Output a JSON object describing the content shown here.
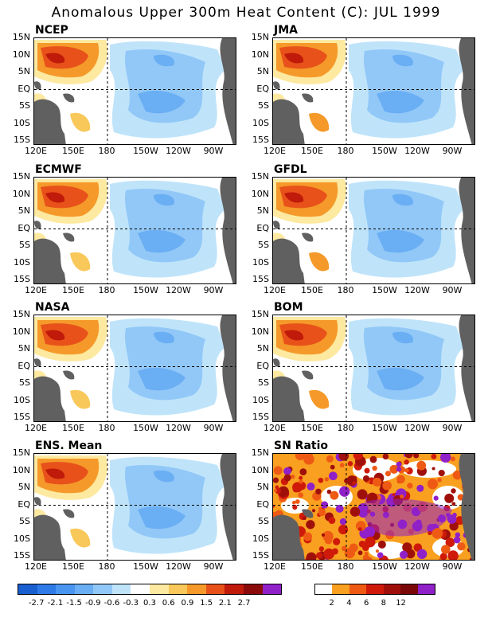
{
  "title": "Anomalous Upper 300m Heat Content (C): JUL 1999",
  "lat_labels": [
    "15N",
    "10N",
    "5N",
    "EQ",
    "5S",
    "10S",
    "15S"
  ],
  "lon_labels": [
    "120E",
    "150E",
    "180",
    "150W",
    "120W",
    "90W"
  ],
  "panels": [
    {
      "label": "NCEP",
      "variant": "anomaly"
    },
    {
      "label": "JMA",
      "variant": "anomaly"
    },
    {
      "label": "ECMWF",
      "variant": "anomaly"
    },
    {
      "label": "GFDL",
      "variant": "anomaly"
    },
    {
      "label": "NASA",
      "variant": "anomaly"
    },
    {
      "label": "BOM",
      "variant": "anomaly"
    },
    {
      "label": "ENS. Mean",
      "variant": "anomaly"
    },
    {
      "label": "SN Ratio",
      "variant": "snratio"
    }
  ],
  "anomaly_colorbar": {
    "colors": [
      "#1a5fd0",
      "#2e7ae6",
      "#4a95f0",
      "#6aaef4",
      "#92c8f7",
      "#bfe4fa",
      "#ffffff",
      "#fde9a0",
      "#f9c85a",
      "#f59a2a",
      "#e8521a",
      "#c01a0a",
      "#8b0a0a",
      "#9020c8"
    ],
    "labels": [
      "-2.7",
      "-2.1",
      "-1.5",
      "-0.9",
      "-0.6",
      "-0.3",
      "0.3",
      "0.6",
      "0.9",
      "1.5",
      "2.1",
      "2.7"
    ]
  },
  "sn_colorbar": {
    "colors": [
      "#ffffff",
      "#f9a020",
      "#ee5a14",
      "#cf1a0a",
      "#a0100a",
      "#7a0808",
      "#9020c8"
    ],
    "labels": [
      "2",
      "4",
      "6",
      "8",
      "12"
    ]
  },
  "land_color": "#606060"
}
